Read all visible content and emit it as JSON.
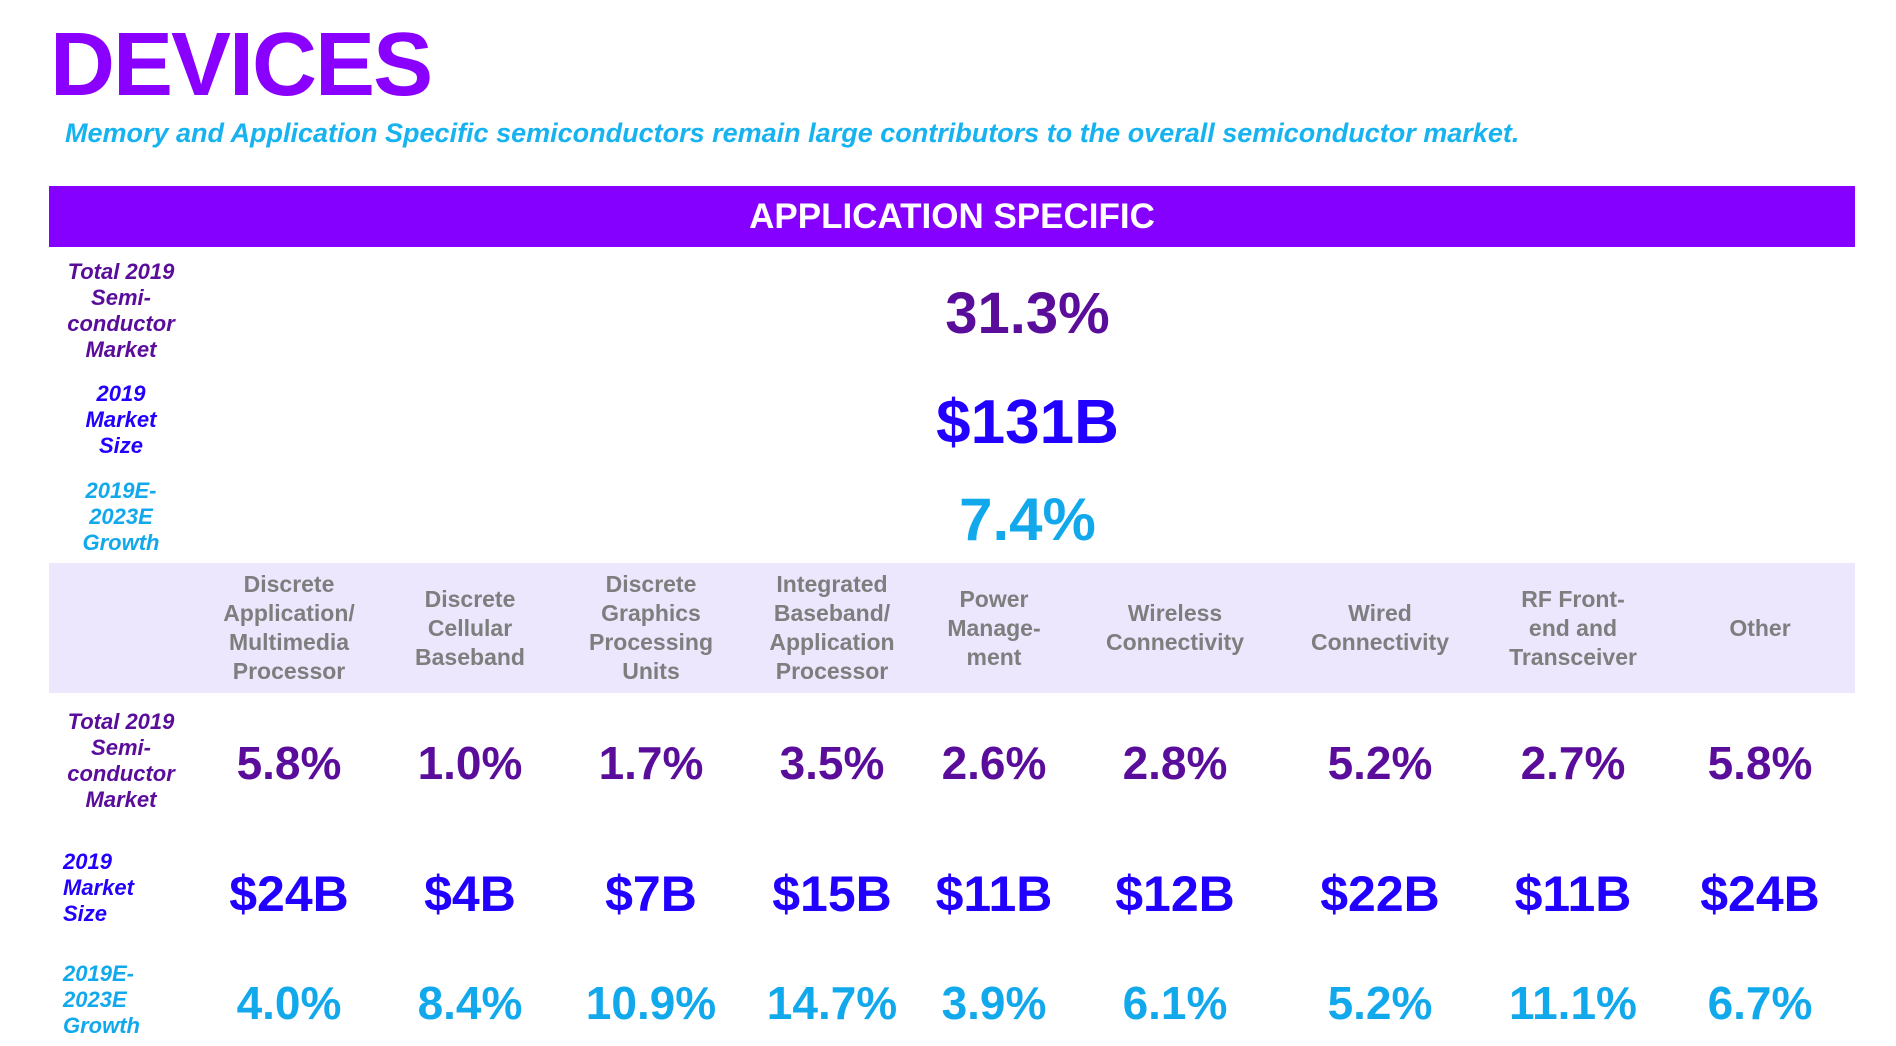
{
  "title": "DEVICES",
  "subtitle": "Memory and Application Specific semiconductors remain large contributors to the overall semiconductor market.",
  "banner": "APPLICATION SPECIFIC",
  "summary": {
    "share_label": "Total 2019 Semi-conductor Market",
    "share_label_lines": [
      "Total 2019",
      "Semi-",
      "conductor",
      "Market"
    ],
    "share_value": "31.3%",
    "size_label": "2019 Market Size",
    "size_label_lines": [
      "2019",
      "Market",
      "Size"
    ],
    "size_value": "$131B",
    "growth_label": "2019E-2023E Growth",
    "growth_label_lines": [
      "2019E-",
      "2023E",
      "Growth"
    ],
    "growth_value": "7.4%"
  },
  "colors": {
    "title": "#8a00ff",
    "banner": "#8600ff",
    "subtitle": "#17b3f0",
    "share": "#5a0d9a",
    "size": "#2200ff",
    "growth": "#11a9ec",
    "category_header_bg": "#ece7fd",
    "category_text": "#7e7e7e"
  },
  "table": {
    "row_labels": {
      "share_lines": [
        "Total 2019",
        "Semi-",
        "conductor",
        "Market"
      ],
      "size_lines": [
        "2019",
        "Market",
        "Size"
      ],
      "growth_lines": [
        "2019E-",
        "2023E",
        "Growth"
      ]
    },
    "categories": [
      {
        "lines": [
          "Discrete",
          "Application/",
          "Multimedia",
          "Processor"
        ],
        "share": "5.8%",
        "size": "$24B",
        "growth": "4.0%"
      },
      {
        "lines": [
          "Discrete",
          "Cellular",
          "Baseband"
        ],
        "share": "1.0%",
        "size": "$4B",
        "growth": "8.4%"
      },
      {
        "lines": [
          "Discrete",
          "Graphics",
          "Processing",
          "Units"
        ],
        "share": "1.7%",
        "size": "$7B",
        "growth": "10.9%"
      },
      {
        "lines": [
          "Integrated",
          "Baseband/",
          "Application",
          "Processor"
        ],
        "share": "3.5%",
        "size": "$15B",
        "growth": "14.7%"
      },
      {
        "lines": [
          "Power",
          "Manage-",
          "ment"
        ],
        "share": "2.6%",
        "size": "$11B",
        "growth": "3.9%"
      },
      {
        "lines": [
          "Wireless",
          "Connectivity"
        ],
        "share": "2.8%",
        "size": "$12B",
        "growth": "6.1%"
      },
      {
        "lines": [
          "Wired",
          "Connectivity"
        ],
        "share": "5.2%",
        "size": "$22B",
        "growth": "5.2%"
      },
      {
        "lines": [
          "RF Front-",
          "end and",
          "Transceiver"
        ],
        "share": "2.7%",
        "size": "$11B",
        "growth": "11.1%"
      },
      {
        "lines": [
          "Other"
        ],
        "share": "5.8%",
        "size": "$24B",
        "growth": "6.7%"
      }
    ]
  }
}
